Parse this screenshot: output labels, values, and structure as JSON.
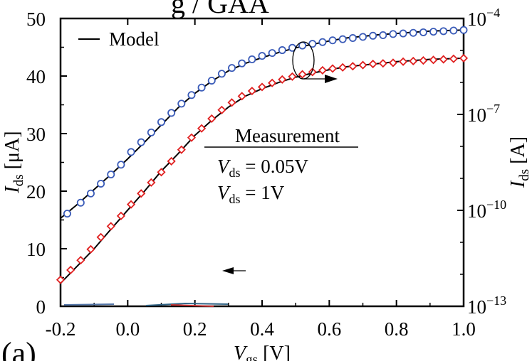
{
  "chart_data": {
    "type": "line",
    "title": "",
    "top_fragment": "g          /  GAA",
    "panel_label": "(a)",
    "xlabel": {
      "main": "V",
      "sub": "gs",
      "unit": "[V]"
    },
    "ylabel_left": {
      "main": "I",
      "sub": "ds",
      "unit": "[μA]"
    },
    "ylabel_right": {
      "main": "I",
      "sub": "ds",
      "unit": "[A]"
    },
    "xlim": [
      -0.2,
      1.0
    ],
    "ylim_left": [
      0,
      50
    ],
    "ylim_right_log10": [
      -13,
      -4
    ],
    "x_ticks": [
      "-0.2",
      "0.0",
      "0.2",
      "0.4",
      "0.6",
      "0.8",
      "1.0"
    ],
    "x_tick_values": [
      -0.2,
      0.0,
      0.2,
      0.4,
      0.6,
      0.8,
      1.0
    ],
    "y_left_ticks": [
      "0",
      "10",
      "20",
      "30",
      "40",
      "50"
    ],
    "y_left_tick_values": [
      0,
      10,
      20,
      30,
      40,
      50
    ],
    "y_right_ticks": [
      {
        "base": "10",
        "exp": "−4",
        "log": -4
      },
      {
        "base": "10",
        "exp": "−7",
        "log": -7
      },
      {
        "base": "10",
        "exp": "−10",
        "log": -10
      },
      {
        "base": "10",
        "exp": "−13",
        "log": -13
      }
    ],
    "legend": {
      "model": "Model",
      "measurement_header": "Measurement",
      "entries": [
        {
          "main": "V",
          "sub": "ds",
          "rest": " = 0.05V",
          "color": "#3a5bb8",
          "marker": "circle"
        },
        {
          "main": "V",
          "sub": "ds",
          "rest": " = 1V",
          "color": "#e02020",
          "marker": "diamond"
        }
      ]
    },
    "series": [
      {
        "name": "Vds = 0.05V",
        "axis": "left",
        "color": "#3a5bb8",
        "marker": "circle",
        "x": [
          -0.18,
          -0.14,
          -0.11,
          -0.08,
          -0.05,
          -0.02,
          0.01,
          0.04,
          0.07,
          0.1,
          0.13,
          0.16,
          0.19,
          0.22,
          0.25,
          0.28,
          0.31,
          0.34,
          0.37,
          0.4,
          0.43,
          0.46,
          0.49,
          0.52,
          0.55,
          0.58,
          0.61,
          0.64,
          0.67,
          0.7,
          0.73,
          0.76,
          0.79,
          0.82,
          0.85,
          0.88,
          0.91,
          0.94,
          0.97,
          1.0
        ],
        "y": [
          16.1,
          18.0,
          19.6,
          21.3,
          22.9,
          24.6,
          26.8,
          28.5,
          30.2,
          32.0,
          33.6,
          35.2,
          36.7,
          38.0,
          39.2,
          40.4,
          41.4,
          42.2,
          42.9,
          43.5,
          44.0,
          44.5,
          44.9,
          45.3,
          45.6,
          45.9,
          46.2,
          46.4,
          46.6,
          46.8,
          47.0,
          47.1,
          47.3,
          47.4,
          47.5,
          47.6,
          47.7,
          47.8,
          47.9,
          48.0
        ]
      },
      {
        "name": "Vds = 1V",
        "axis": "left",
        "color": "#e02020",
        "marker": "diamond",
        "x": [
          -0.2,
          -0.17,
          -0.14,
          -0.11,
          -0.08,
          -0.05,
          -0.02,
          0.01,
          0.04,
          0.07,
          0.1,
          0.13,
          0.16,
          0.19,
          0.22,
          0.25,
          0.28,
          0.31,
          0.34,
          0.37,
          0.4,
          0.43,
          0.46,
          0.49,
          0.52,
          0.55,
          0.58,
          0.61,
          0.64,
          0.67,
          0.7,
          0.73,
          0.76,
          0.79,
          0.82,
          0.85,
          0.88,
          0.91,
          0.94,
          0.97,
          1.0
        ],
        "y": [
          4.6,
          6.3,
          8.0,
          9.9,
          12.0,
          13.9,
          15.7,
          17.7,
          19.6,
          21.5,
          23.3,
          25.2,
          27.2,
          29.3,
          30.9,
          32.6,
          34.1,
          35.4,
          36.5,
          37.4,
          38.1,
          38.8,
          39.4,
          39.9,
          40.3,
          40.7,
          41.0,
          41.3,
          41.5,
          41.7,
          41.9,
          42.1,
          42.2,
          42.3,
          42.5,
          42.6,
          42.7,
          42.8,
          42.9,
          43.0,
          43.1
        ]
      }
    ],
    "model_curves": [
      {
        "name": "Model",
        "color": "#000000",
        "x": [
          -0.2,
          -0.15,
          -0.1,
          -0.05,
          0.0,
          0.05,
          0.1,
          0.15,
          0.2,
          0.25,
          0.3,
          0.35,
          0.4,
          0.45,
          0.5,
          0.55,
          0.6,
          0.65,
          0.7,
          0.75,
          0.8,
          0.85,
          0.9,
          0.95,
          1.0
        ],
        "y": [
          15.3,
          17.7,
          20.3,
          22.9,
          25.6,
          28.5,
          31.5,
          34.5,
          37.0,
          39.1,
          40.9,
          42.2,
          43.2,
          44.1,
          44.9,
          45.5,
          46.1,
          46.6,
          46.9,
          47.2,
          47.4,
          47.6,
          47.8,
          47.9,
          48.0
        ]
      },
      {
        "name": "Model",
        "color": "#000000",
        "x": [
          -0.2,
          -0.15,
          -0.1,
          -0.05,
          0.0,
          0.05,
          0.1,
          0.15,
          0.2,
          0.25,
          0.3,
          0.35,
          0.4,
          0.45,
          0.5,
          0.55,
          0.6,
          0.65,
          0.7,
          0.75,
          0.8,
          0.85,
          0.9,
          0.95,
          1.0
        ],
        "y": [
          4.0,
          7.0,
          10.0,
          13.4,
          16.7,
          20.0,
          23.5,
          26.5,
          29.7,
          32.3,
          34.6,
          36.5,
          37.8,
          38.9,
          39.8,
          40.5,
          41.1,
          41.6,
          41.9,
          42.2,
          42.5,
          42.7,
          42.9,
          43.0,
          43.1
        ]
      }
    ]
  }
}
